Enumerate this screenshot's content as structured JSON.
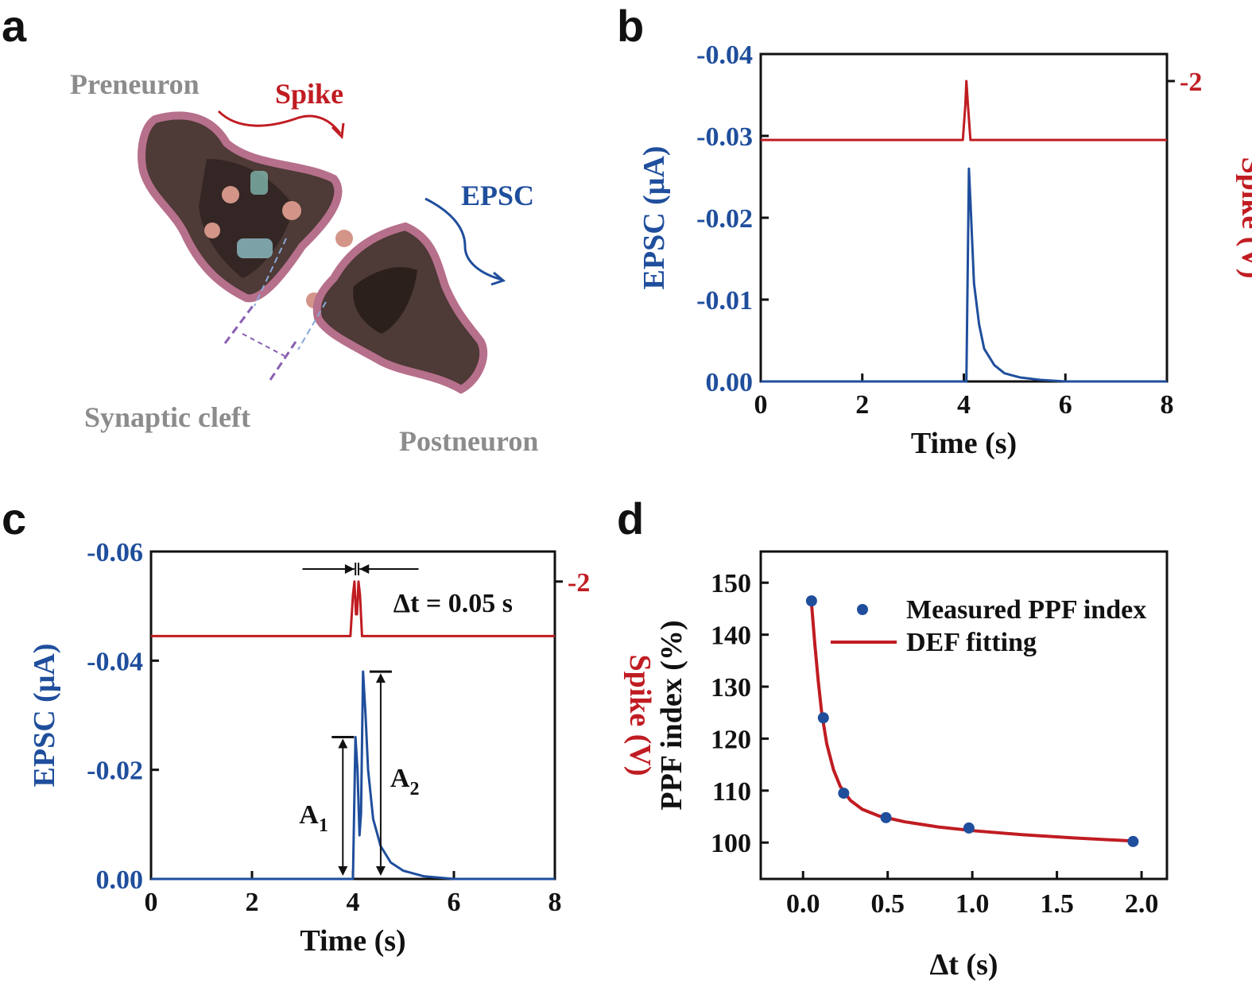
{
  "colors": {
    "blue": "#1f4e9c",
    "red": "#c01c22",
    "grey": "#8c8c8c",
    "black": "#111111",
    "membrane": "#b6708c",
    "cytoplasm": "#4e3a36"
  },
  "panel_a": {
    "label": "a",
    "preneuron": "Preneuron",
    "spike": "Spike",
    "epsc": "EPSC",
    "cleft": "Synaptic cleft",
    "postneuron": "Postneuron"
  },
  "chart_data": [
    {
      "panel": "b",
      "type": "line",
      "xlabel": "Time (s)",
      "ylabel_left": "EPSC (μA)",
      "ylabel_right": "Spike (V)",
      "xlim": [
        0,
        8
      ],
      "ylim_left": [
        0,
        -0.04
      ],
      "x_ticks": [
        "0",
        "2",
        "4",
        "6",
        "8"
      ],
      "y_left_ticks": [
        "0.00",
        "-0.01",
        "-0.02",
        "-0.03",
        "-0.04"
      ],
      "y_right_ticks": [
        "-2"
      ],
      "series": [
        {
          "name": "EPSC",
          "axis": "left",
          "color": "#1f4e9c",
          "x": [
            0,
            4.05,
            4.1,
            4.13,
            4.2,
            4.3,
            4.4,
            4.6,
            4.8,
            5.1,
            5.5,
            6,
            8
          ],
          "y": [
            0,
            0,
            -0.026,
            -0.022,
            -0.012,
            -0.007,
            -0.004,
            -0.002,
            -0.001,
            -0.0005,
            -0.0002,
            0,
            0
          ]
        },
        {
          "name": "Spike",
          "axis": "right",
          "color": "#c01c22",
          "x": [
            0,
            3.98,
            4.03,
            4.05,
            4.08,
            4.13,
            8
          ],
          "y": [
            0,
            0,
            -1.2,
            -2,
            -1.2,
            0,
            0
          ],
          "baseline_left_units": -0.0295,
          "peak_left_units": -0.0367
        }
      ]
    },
    {
      "panel": "c",
      "type": "line",
      "xlabel": "Time (s)",
      "ylabel_left": "EPSC (μA)",
      "ylabel_right": "Spike (V)",
      "xlim": [
        0,
        8
      ],
      "ylim_left": [
        0,
        -0.06
      ],
      "x_ticks": [
        "0",
        "2",
        "4",
        "6",
        "8"
      ],
      "y_left_ticks": [
        "0.00",
        "-0.02",
        "-0.04",
        "-0.06"
      ],
      "y_right_ticks": [
        "-2"
      ],
      "annotation_dt": "Δt = 0.05 s",
      "annotation_a1": "A",
      "annotation_a2": "A",
      "annotation_a1_sub": "1",
      "annotation_a2_sub": "2",
      "series": [
        {
          "name": "EPSC",
          "axis": "left",
          "color": "#1f4e9c",
          "x": [
            0,
            4.0,
            4.05,
            4.09,
            4.13,
            4.16,
            4.2,
            4.25,
            4.3,
            4.4,
            4.55,
            4.75,
            5.0,
            5.4,
            6,
            8
          ],
          "y": [
            0,
            0,
            -0.026,
            -0.02,
            -0.008,
            -0.012,
            -0.038,
            -0.03,
            -0.02,
            -0.011,
            -0.006,
            -0.003,
            -0.0015,
            -0.0005,
            0,
            0
          ]
        },
        {
          "name": "Spike",
          "axis": "right",
          "color": "#c01c22",
          "x": [
            0,
            3.95,
            4.0,
            4.03,
            4.06,
            4.08,
            4.11,
            4.14,
            4.18,
            8
          ],
          "y": [
            0,
            0,
            -1.5,
            -2,
            -0.8,
            -0.8,
            -2,
            -1.5,
            0,
            0
          ],
          "baseline_left_units": -0.0445,
          "peak_left_units": -0.0545
        }
      ]
    },
    {
      "panel": "d",
      "type": "scatter",
      "xlabel": "Δt (s)",
      "ylabel": "PPF index (%)",
      "xlim": [
        -0.25,
        2.15
      ],
      "ylim": [
        93,
        156
      ],
      "x_ticks": [
        "0.0",
        "0.5",
        "1.0",
        "1.5",
        "2.0"
      ],
      "y_ticks": [
        "100",
        "110",
        "120",
        "130",
        "140",
        "150"
      ],
      "legend": [
        "Measured PPF index",
        "DEF fitting"
      ],
      "legend_position": "top-right",
      "series": [
        {
          "name": "Measured PPF index",
          "kind": "points",
          "color": "#1f4e9c",
          "x": [
            0.05,
            0.12,
            0.24,
            0.49,
            0.98,
            1.95
          ],
          "y": [
            146.5,
            124,
            109.5,
            104.8,
            102.8,
            100.2
          ]
        },
        {
          "name": "DEF fitting",
          "kind": "line",
          "color": "#c01c22",
          "x": [
            0.05,
            0.07,
            0.09,
            0.11,
            0.14,
            0.18,
            0.22,
            0.28,
            0.35,
            0.45,
            0.6,
            0.8,
            1.0,
            1.3,
            1.6,
            1.95
          ],
          "y": [
            146,
            138,
            131,
            125,
            119,
            114,
            110.8,
            108.1,
            106.4,
            105.1,
            104,
            103,
            102.3,
            101.5,
            100.9,
            100.3
          ]
        }
      ]
    }
  ]
}
